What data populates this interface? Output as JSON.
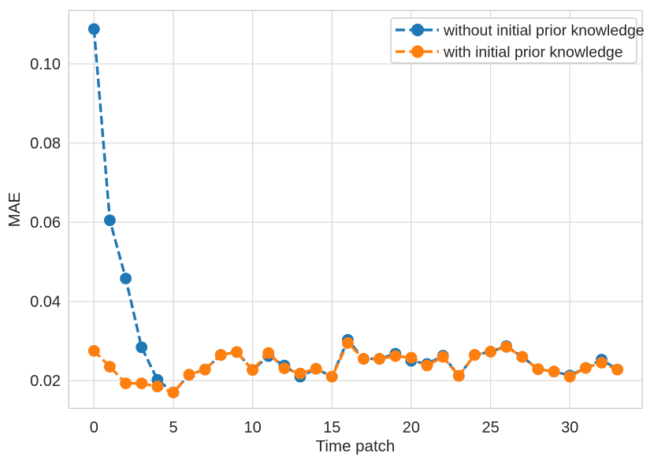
{
  "figure": {
    "background": "#ffffff",
    "grid_color": "#d9d9d9",
    "spine_color": "#c9c9c9",
    "text_color": "#262626",
    "legend": {
      "border_color": "#cccccc",
      "items": [
        {
          "label": "without initial prior knowledge",
          "color": "#1f77b4"
        },
        {
          "label": "with initial prior knowledge",
          "color": "#ff7f0e"
        }
      ]
    }
  },
  "chart_data": {
    "type": "line",
    "title": "",
    "xlabel": "Time patch",
    "ylabel": "MAE",
    "grid": true,
    "legend_position": "upper right",
    "line_style": "dashed",
    "marker": "circle",
    "xlim": [
      -1.59,
      34.56
    ],
    "ylim": [
      0.013,
      0.1135
    ],
    "x_ticks": [
      0,
      5,
      10,
      15,
      20,
      25,
      30
    ],
    "x_tick_labels": [
      "0",
      "5",
      "10",
      "15",
      "20",
      "25",
      "30"
    ],
    "y_ticks": [
      0.02,
      0.04,
      0.06,
      0.08,
      0.1
    ],
    "y_tick_labels": [
      "0.02",
      "0.04",
      "0.06",
      "0.08",
      "0.10"
    ],
    "x": [
      0,
      1,
      2,
      3,
      4,
      5,
      6,
      7,
      8,
      9,
      10,
      11,
      12,
      13,
      14,
      15,
      16,
      17,
      18,
      19,
      20,
      21,
      22,
      23,
      24,
      25,
      26,
      27,
      28,
      29,
      30,
      31,
      32,
      33
    ],
    "series": [
      {
        "name": "without initial prior knowledge",
        "color": "#1f77b4",
        "values": [
          0.1088,
          0.0605,
          0.0458,
          0.0284,
          0.0202,
          0.017,
          0.0215,
          0.0228,
          0.0265,
          0.0272,
          0.0227,
          0.0262,
          0.0238,
          0.021,
          0.023,
          0.021,
          0.0303,
          0.0255,
          0.0255,
          0.0268,
          0.025,
          0.0242,
          0.0263,
          0.0212,
          0.0265,
          0.0273,
          0.0287,
          0.026,
          0.0229,
          0.0223,
          0.0213,
          0.0232,
          0.0253,
          0.0228
        ]
      },
      {
        "name": "with initial prior knowledge",
        "color": "#ff7f0e",
        "values": [
          0.0275,
          0.0235,
          0.0193,
          0.0193,
          0.0185,
          0.017,
          0.0215,
          0.0228,
          0.0265,
          0.0272,
          0.0227,
          0.027,
          0.0231,
          0.0218,
          0.023,
          0.021,
          0.0295,
          0.0255,
          0.0255,
          0.0262,
          0.0258,
          0.0238,
          0.026,
          0.0212,
          0.0265,
          0.0273,
          0.0285,
          0.026,
          0.0229,
          0.0223,
          0.021,
          0.0232,
          0.0245,
          0.0228
        ]
      }
    ]
  }
}
